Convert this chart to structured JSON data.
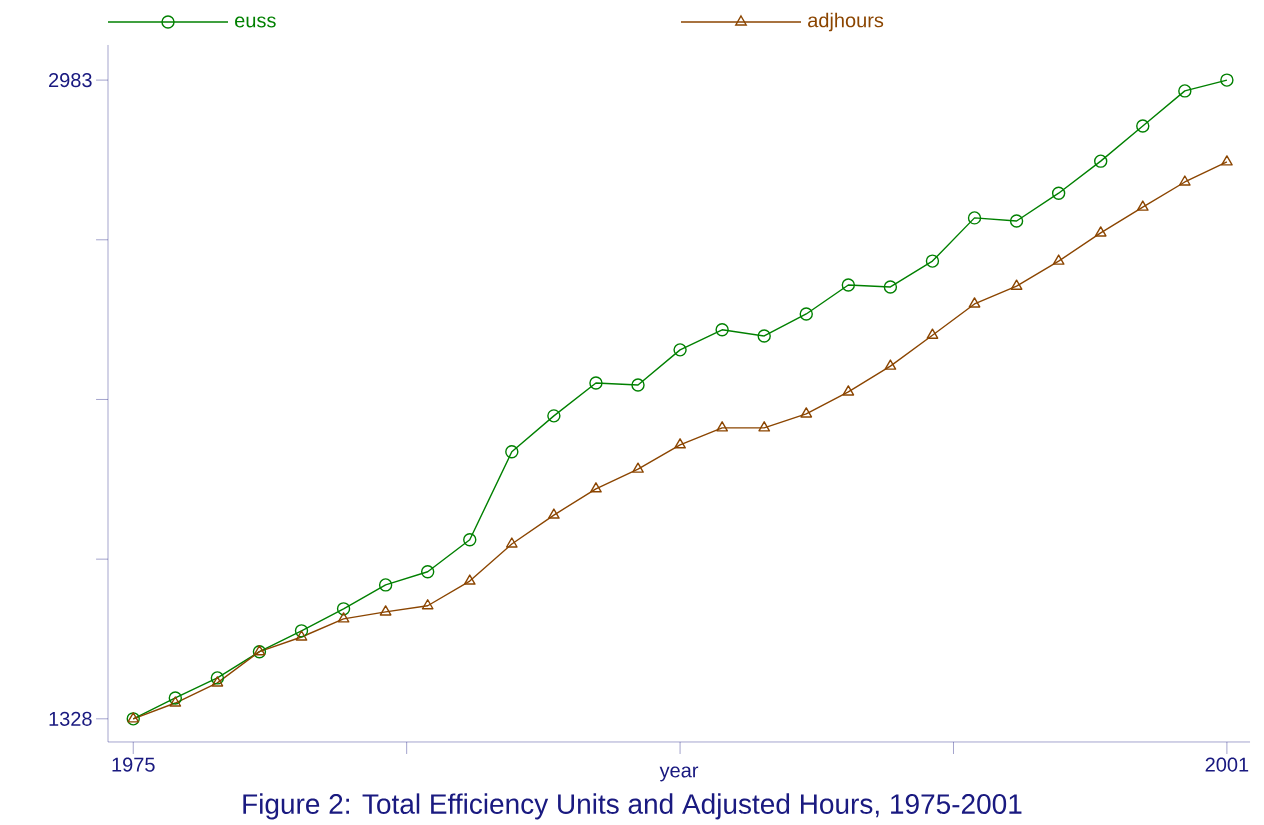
{
  "chart_data": {
    "type": "line",
    "xlabel": "year",
    "annotations": [
      "Figure 2: Total Efficiency Units and Adjusted Hours, 1975-2001"
    ],
    "x": [
      1975,
      1976,
      1977,
      1978,
      1979,
      1980,
      1981,
      1982,
      1983,
      1984,
      1985,
      1986,
      1987,
      1988,
      1989,
      1990,
      1991,
      1992,
      1993,
      1994,
      1995,
      1996,
      1997,
      1998,
      1999,
      2000,
      2001
    ],
    "series": [
      {
        "name": "euss",
        "color": "#008000",
        "marker": "circle",
        "values": [
          1328,
          1382,
          1434,
          1502,
          1556,
          1613,
          1675,
          1709,
          1792,
          2020,
          2113,
          2198,
          2193,
          2284,
          2336,
          2320,
          2377,
          2452,
          2447,
          2514,
          2626,
          2618,
          2690,
          2773,
          2864,
          2955,
          2983
        ]
      },
      {
        "name": "adjhours",
        "color": "#8b4500",
        "marker": "triangle",
        "values": [
          1328,
          1369,
          1421,
          1502,
          1540,
          1587,
          1605,
          1621,
          1685,
          1781,
          1856,
          1924,
          1975,
          2038,
          2082,
          2082,
          2118,
          2175,
          2242,
          2322,
          2403,
          2449,
          2514,
          2587,
          2654,
          2719,
          2771
        ]
      }
    ],
    "xlim": [
      1974.4,
      2001.55
    ],
    "ylim": [
      1268,
      3074
    ],
    "xticks": [
      1975,
      {
        "value": 1981.5,
        "label": null
      },
      {
        "value": 1988,
        "label": null
      },
      {
        "value": 1994.5,
        "label": null
      },
      2001
    ],
    "yticks": [
      1328,
      {
        "value": 1741.75,
        "label": null
      },
      {
        "value": 2155.5,
        "label": null
      },
      {
        "value": 2569.25,
        "label": null
      },
      2983
    ],
    "legend": "top"
  }
}
